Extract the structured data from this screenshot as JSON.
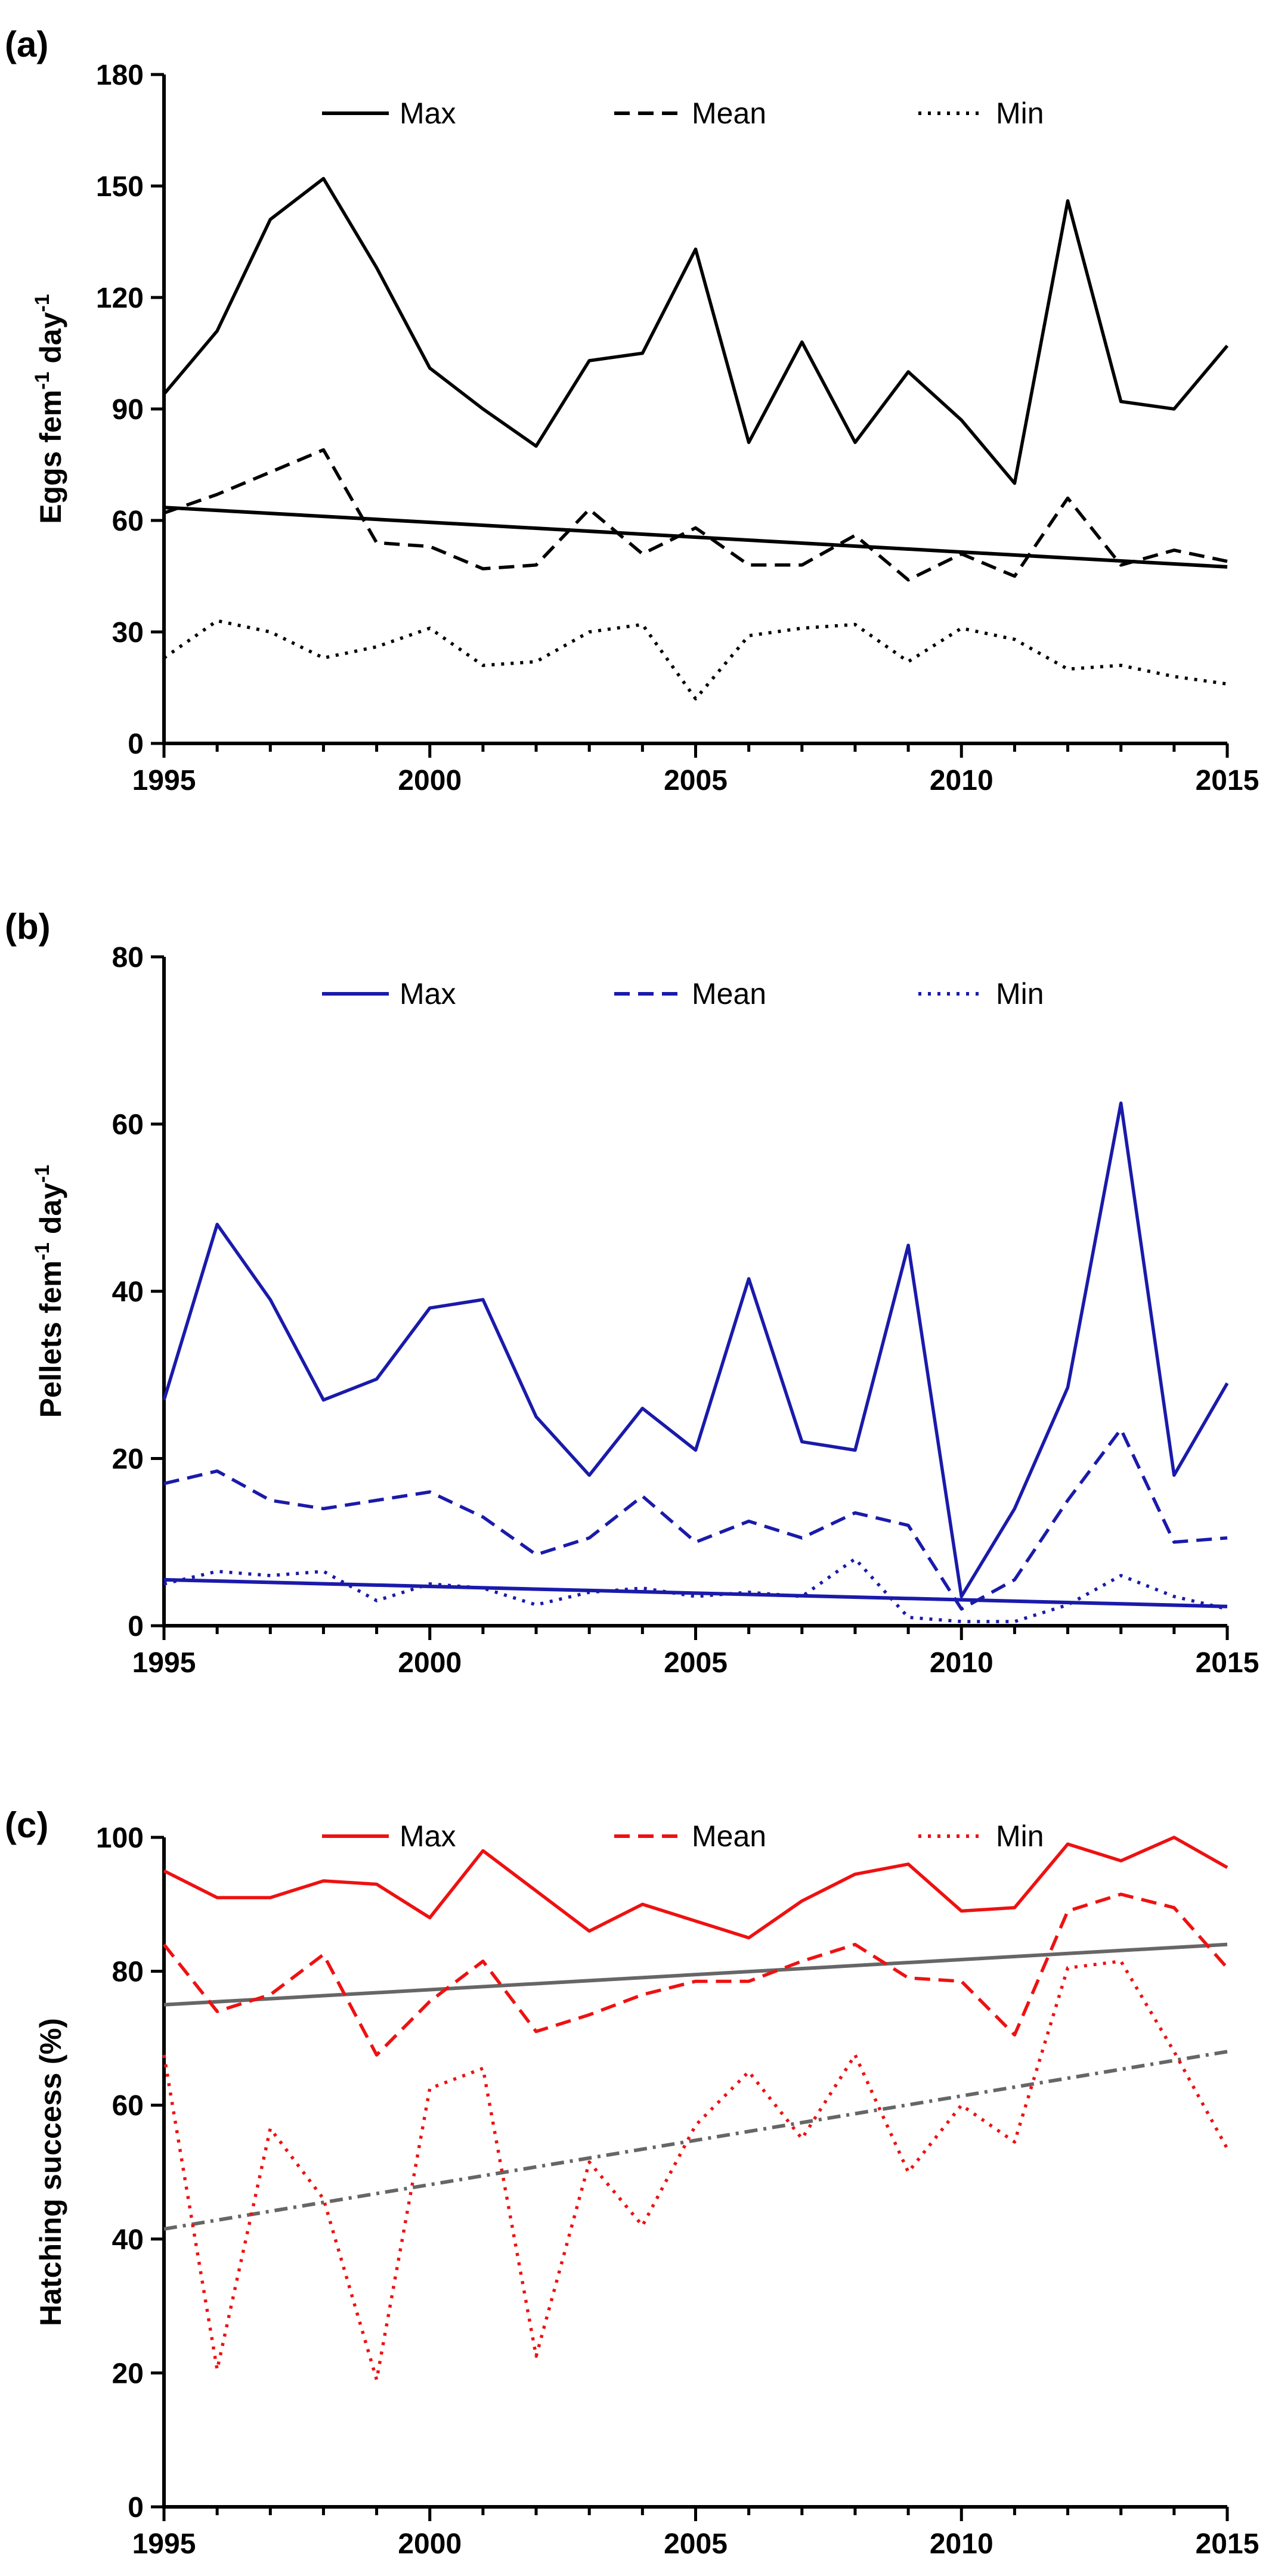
{
  "chart_data": [
    {
      "type": "line",
      "panel_label": "(a)",
      "color": "#000000",
      "ylabel": "Eggs fem-1 day-1",
      "ylabel_parts": {
        "base1": "Eggs fem",
        "sup1": "-1",
        "base2": " day",
        "sup2": "-1"
      },
      "ylim": [
        0,
        180
      ],
      "yticks": [
        0,
        30,
        60,
        90,
        120,
        150,
        180
      ],
      "xlim": [
        1995,
        2015
      ],
      "xticks": [
        1995,
        2000,
        2005,
        2010,
        2015
      ],
      "legend_position": "top",
      "x": [
        1995,
        1996,
        1997,
        1998,
        1999,
        2000,
        2001,
        2002,
        2003,
        2004,
        2005,
        2006,
        2007,
        2008,
        2009,
        2010,
        2011,
        2012,
        2013,
        2014,
        2015
      ],
      "series": [
        {
          "name": "Max",
          "style": "solid",
          "values": [
            94,
            111,
            141,
            152,
            128,
            101,
            90,
            80,
            103,
            105,
            133,
            81,
            108,
            81,
            100,
            87,
            70,
            146,
            92,
            90,
            107
          ]
        },
        {
          "name": "Mean",
          "style": "dashed",
          "values": [
            62,
            67,
            73,
            79,
            54,
            53,
            47,
            48,
            63,
            51,
            58,
            48,
            48,
            56,
            44,
            51,
            45,
            66,
            48,
            52,
            49
          ]
        },
        {
          "name": "Min",
          "style": "dotted",
          "values": [
            23,
            33,
            30,
            23,
            26,
            31,
            21,
            22,
            30,
            32,
            12,
            29,
            31,
            32,
            22,
            31,
            28,
            20,
            21,
            18,
            16
          ]
        }
      ],
      "trendlines": [
        {
          "style": "solid",
          "color": "#000000",
          "x": [
            1995,
            2015
          ],
          "y": [
            63.5,
            47.5
          ]
        }
      ]
    },
    {
      "type": "line",
      "panel_label": "(b)",
      "color": "#1a1aaa",
      "ylabel": "Pellets fem-1 day-1",
      "ylabel_parts": {
        "base1": "Pellets fem",
        "sup1": "-1",
        "base2": " day",
        "sup2": "-1"
      },
      "ylim": [
        0,
        80
      ],
      "yticks": [
        0,
        20,
        40,
        60,
        80
      ],
      "xlim": [
        1995,
        2015
      ],
      "xticks": [
        1995,
        2000,
        2005,
        2010,
        2015
      ],
      "legend_position": "top",
      "x": [
        1995,
        1996,
        1997,
        1998,
        1999,
        2000,
        2001,
        2002,
        2003,
        2004,
        2005,
        2006,
        2007,
        2008,
        2009,
        2010,
        2011,
        2012,
        2013,
        2014,
        2015
      ],
      "series": [
        {
          "name": "Max",
          "style": "solid",
          "values": [
            27,
            48,
            39,
            27,
            29.5,
            38,
            39,
            25,
            18,
            26,
            21,
            41.5,
            22,
            21,
            45.5,
            3.5,
            14,
            28.5,
            62.5,
            18,
            29
          ]
        },
        {
          "name": "Mean",
          "style": "dashed",
          "values": [
            17,
            18.5,
            15,
            14,
            15,
            16,
            13,
            8.5,
            10.5,
            15.5,
            10,
            12.5,
            10.5,
            13.5,
            12,
            2,
            5.5,
            15,
            23.5,
            10,
            10.5
          ]
        },
        {
          "name": "Min",
          "style": "dotted",
          "values": [
            5,
            6.5,
            6,
            6.5,
            3,
            5,
            4.5,
            2.5,
            4,
            4.5,
            3.5,
            4,
            3.5,
            8,
            1,
            0.5,
            0.5,
            2.5,
            6,
            3.5,
            2
          ]
        }
      ],
      "trendlines": [
        {
          "style": "solid",
          "color": "#1a1aaa",
          "x": [
            1995,
            2015
          ],
          "y": [
            5.5,
            2.3
          ]
        }
      ]
    },
    {
      "type": "line",
      "panel_label": "(c)",
      "color": "#ee1111",
      "ylabel": "Hatching success (%)",
      "ylim": [
        0,
        100
      ],
      "yticks": [
        0,
        20,
        40,
        60,
        80,
        100
      ],
      "xlim": [
        1995,
        2015
      ],
      "xticks": [
        1995,
        2000,
        2005,
        2010,
        2015
      ],
      "legend_position": "top",
      "x": [
        1995,
        1996,
        1997,
        1998,
        1999,
        2000,
        2001,
        2002,
        2003,
        2004,
        2005,
        2006,
        2007,
        2008,
        2009,
        2010,
        2011,
        2012,
        2013,
        2014,
        2015
      ],
      "series": [
        {
          "name": "Max",
          "style": "solid",
          "values": [
            95,
            91,
            91,
            93.5,
            93,
            88,
            98,
            92,
            86,
            90,
            87.5,
            85,
            90.5,
            94.5,
            96,
            89,
            89.5,
            99,
            96.5,
            100,
            95.5
          ]
        },
        {
          "name": "Mean",
          "style": "dashed",
          "values": [
            84,
            74,
            76.5,
            82.5,
            67.5,
            75.5,
            81.5,
            71,
            73.5,
            76.5,
            78.5,
            78.5,
            81.5,
            84,
            79,
            78.5,
            70.5,
            89,
            91.5,
            89.5,
            80.5
          ]
        },
        {
          "name": "Min",
          "style": "dotted",
          "values": [
            67.5,
            20.5,
            56.5,
            46,
            19,
            62.5,
            65.5,
            22.5,
            51.5,
            42,
            57,
            65,
            55,
            67.5,
            50,
            60,
            54.5,
            80.5,
            81.5,
            68,
            53.5
          ]
        }
      ],
      "trendlines": [
        {
          "style": "solid",
          "color": "#666666",
          "x": [
            1995,
            2015
          ],
          "y": [
            75,
            84
          ]
        },
        {
          "style": "dashdot",
          "color": "#666666",
          "x": [
            1995,
            2015
          ],
          "y": [
            41.5,
            68
          ]
        }
      ]
    }
  ]
}
